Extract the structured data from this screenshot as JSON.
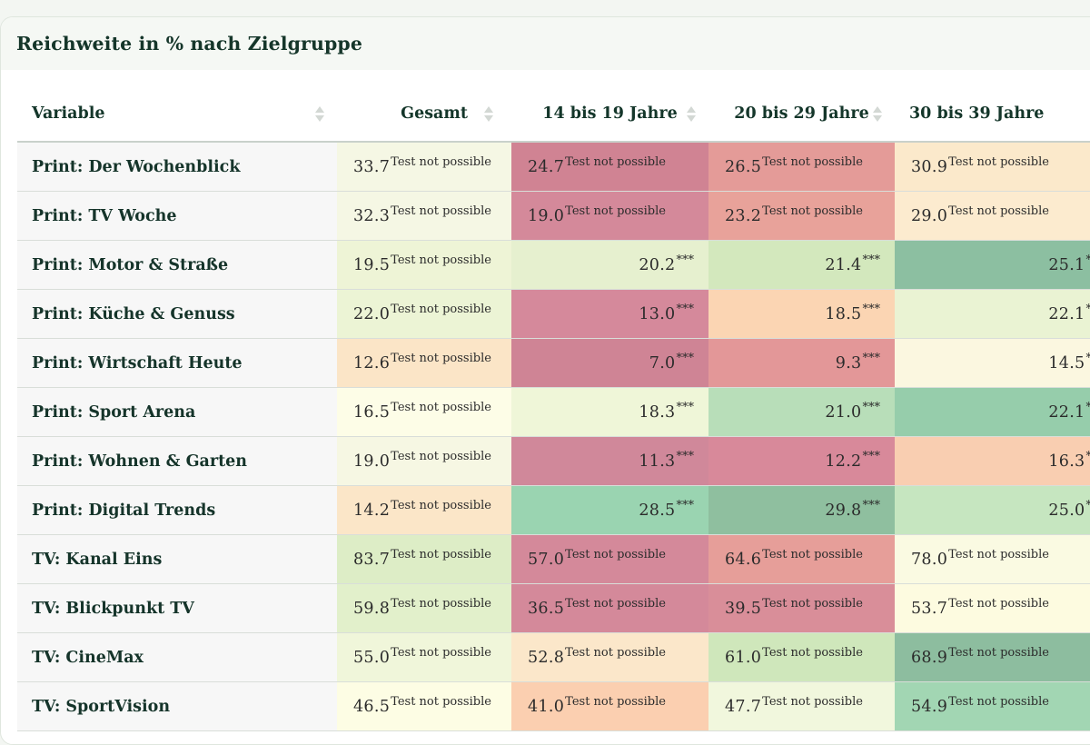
{
  "title": "Reichweite in % nach Zielgruppe",
  "columns": [
    {
      "label": "Variable"
    },
    {
      "label": "Gesamt"
    },
    {
      "label": "14 bis 19 Jahre"
    },
    {
      "label": "20 bis 29 Jahre"
    },
    {
      "label": "30 bis 39 Jahre"
    }
  ],
  "rows": [
    {
      "label": "Print: Der Wochenblick",
      "cells": [
        {
          "value": "33.7",
          "sup": "Test not possible",
          "color": "#f5f7e4"
        },
        {
          "value": "24.7",
          "sup": "Test not possible",
          "color": "#d08393"
        },
        {
          "value": "26.5",
          "sup": "Test not possible",
          "color": "#e49b98"
        },
        {
          "value": "30.9",
          "sup": "Test not possible",
          "color": "#fbe9cb"
        }
      ]
    },
    {
      "label": "Print: TV Woche",
      "cells": [
        {
          "value": "32.3",
          "sup": "Test not possible",
          "color": "#f5f7e4"
        },
        {
          "value": "19.0",
          "sup": "Test not possible",
          "color": "#d4899a"
        },
        {
          "value": "23.2",
          "sup": "Test not possible",
          "color": "#e8a29a"
        },
        {
          "value": "29.0",
          "sup": "Test not possible",
          "color": "#fcebcf"
        }
      ]
    },
    {
      "label": "Print: Motor & Straße",
      "cells": [
        {
          "value": "19.5",
          "sup": "Test not possible",
          "color": "#eef4d6"
        },
        {
          "value": "20.2",
          "sup": "***",
          "color": "#e6f0cf"
        },
        {
          "value": "21.4",
          "sup": "***",
          "color": "#d3e8bd"
        },
        {
          "value": "25.1",
          "sup": "***",
          "color": "#8cbfa1"
        }
      ]
    },
    {
      "label": "Print: Küche & Genuss",
      "cells": [
        {
          "value": "22.0",
          "sup": "Test not possible",
          "color": "#ecf4d5"
        },
        {
          "value": "13.0",
          "sup": "***",
          "color": "#d5899b"
        },
        {
          "value": "18.5",
          "sup": "***",
          "color": "#fbd5b3"
        },
        {
          "value": "22.1",
          "sup": "***",
          "color": "#eaf3d3"
        }
      ]
    },
    {
      "label": "Print: Wirtschaft Heute",
      "cells": [
        {
          "value": "12.6",
          "sup": "Test not possible",
          "color": "#fbe5c7"
        },
        {
          "value": "7.0",
          "sup": "***",
          "color": "#cf8495"
        },
        {
          "value": "9.3",
          "sup": "***",
          "color": "#e39798"
        },
        {
          "value": "14.5",
          "sup": "***",
          "color": "#fbf7e0"
        }
      ]
    },
    {
      "label": "Print: Sport Arena",
      "cells": [
        {
          "value": "16.5",
          "sup": "Test not possible",
          "color": "#fdfde7"
        },
        {
          "value": "18.3",
          "sup": "***",
          "color": "#eff6d8"
        },
        {
          "value": "21.0",
          "sup": "***",
          "color": "#b8deb9"
        },
        {
          "value": "22.1",
          "sup": "***",
          "color": "#96cdab"
        }
      ]
    },
    {
      "label": "Print: Wohnen & Garten",
      "cells": [
        {
          "value": "19.0",
          "sup": "Test not possible",
          "color": "#f6f7e3"
        },
        {
          "value": "11.3",
          "sup": "***",
          "color": "#d0889a"
        },
        {
          "value": "12.2",
          "sup": "***",
          "color": "#d8899a"
        },
        {
          "value": "16.3",
          "sup": "***",
          "color": "#f9ceb1"
        }
      ]
    },
    {
      "label": "Print: Digital Trends",
      "cells": [
        {
          "value": "14.2",
          "sup": "Test not possible",
          "color": "#fbe6c8"
        },
        {
          "value": "28.5",
          "sup": "***",
          "color": "#9ad4b1"
        },
        {
          "value": "29.8",
          "sup": "***",
          "color": "#8fbf9f"
        },
        {
          "value": "25.0",
          "sup": "***",
          "color": "#c6e6c0"
        }
      ]
    },
    {
      "label": "TV: Kanal Eins",
      "cells": [
        {
          "value": "83.7",
          "sup": "Test not possible",
          "color": "#ddedc6"
        },
        {
          "value": "57.0",
          "sup": "Test not possible",
          "color": "#d4899a"
        },
        {
          "value": "64.6",
          "sup": "Test not possible",
          "color": "#e69e99"
        },
        {
          "value": "78.0",
          "sup": "Test not possible",
          "color": "#fafae2"
        }
      ]
    },
    {
      "label": "TV: Blickpunkt TV",
      "cells": [
        {
          "value": "59.8",
          "sup": "Test not possible",
          "color": "#e2f0cb"
        },
        {
          "value": "36.5",
          "sup": "Test not possible",
          "color": "#d4899a"
        },
        {
          "value": "39.5",
          "sup": "Test not possible",
          "color": "#d98e99"
        },
        {
          "value": "53.7",
          "sup": "Test not possible",
          "color": "#fdfbe0"
        }
      ]
    },
    {
      "label": "TV: CineMax",
      "cells": [
        {
          "value": "55.0",
          "sup": "Test not possible",
          "color": "#f0f6da"
        },
        {
          "value": "52.8",
          "sup": "Test not possible",
          "color": "#fbe7ca"
        },
        {
          "value": "61.0",
          "sup": "Test not possible",
          "color": "#cfe7bb"
        },
        {
          "value": "68.9",
          "sup": "Test not possible",
          "color": "#8dbd9f"
        }
      ]
    },
    {
      "label": "TV: SportVision",
      "cells": [
        {
          "value": "46.5",
          "sup": "Test not possible",
          "color": "#fdfde4"
        },
        {
          "value": "41.0",
          "sup": "Test not possible",
          "color": "#fbcfb0"
        },
        {
          "value": "47.7",
          "sup": "Test not possible",
          "color": "#f1f7dd"
        },
        {
          "value": "54.9",
          "sup": "Test not possible",
          "color": "#a2d6b3"
        }
      ]
    }
  ]
}
